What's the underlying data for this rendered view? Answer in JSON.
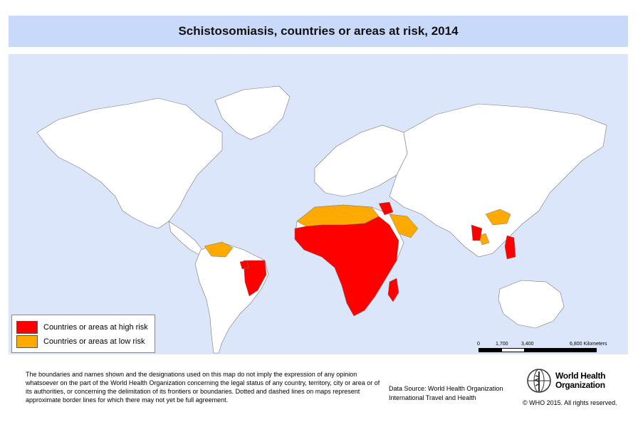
{
  "title": "Schistosomiasis, countries or areas at risk, 2014",
  "legend": {
    "high": {
      "label": "Countries or areas at high risk",
      "color": "#ff0000"
    },
    "low": {
      "label": "Countries or areas at low risk",
      "color": "#ffaa00"
    }
  },
  "scale": {
    "ticks": [
      "0",
      "1,700",
      "3,400",
      "6,800 Kilometers"
    ]
  },
  "disclaimer": "The boundaries and names shown and the designations used on this map do not imply the expression of any opinion whatsoever on the part of the World Health Organization concerning the legal status of any country, territory, city or area or of its authorities, or concerning the delimitation of its frontiers or boundaries. Dotted and dashed lines on maps represent approximate border lines for which there may not yet be full agreement.",
  "source": {
    "line1": "Data Source: World Health Organization",
    "line2": "International Travel and Health"
  },
  "org": {
    "line1": "World Health",
    "line2": "Organization"
  },
  "copyright": "© WHO 2015. All rights reserved.",
  "colors": {
    "ocean": "#dce6fb",
    "land": "#ffffff",
    "border": "#666666",
    "title_band": "#c9d9f9"
  }
}
